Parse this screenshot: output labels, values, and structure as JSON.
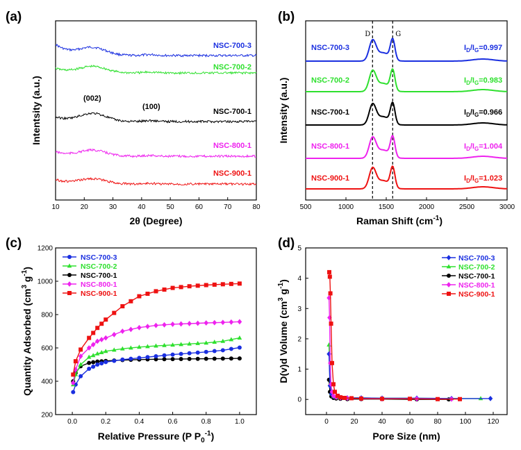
{
  "colors": {
    "NSC-700-3": "#1a2fe0",
    "NSC-700-2": "#2ee02e",
    "NSC-700-1": "#000000",
    "NSC-800-1": "#ee22ee",
    "NSC-900-1": "#ee1111"
  },
  "chart_data": [
    {
      "panel": "(a)",
      "type": "line",
      "title": "",
      "xlabel": "2θ (Degree)",
      "ylabel": "Intentsity (a.u.)",
      "xlim": [
        10,
        80
      ],
      "xticks": [
        "10",
        "20",
        "30",
        "40",
        "50",
        "60",
        "70",
        "80"
      ],
      "annotations": [
        "(002)",
        "(100)"
      ],
      "series": [
        {
          "name": "NSC-700-3",
          "offset": 4,
          "peak002": 0.9,
          "peak100": 0.35
        },
        {
          "name": "NSC-700-2",
          "offset": 3,
          "peak002": 0.75,
          "peak100": 0.3
        },
        {
          "name": "NSC-700-1",
          "offset": 2,
          "peak002": 0.95,
          "peak100": 0.35
        },
        {
          "name": "NSC-800-1",
          "offset": 1,
          "peak002": 0.7,
          "peak100": 0.3
        },
        {
          "name": "NSC-900-1",
          "offset": 0,
          "peak002": 0.6,
          "peak100": 0.25
        }
      ]
    },
    {
      "panel": "(b)",
      "type": "line",
      "title": "",
      "xlabel": "Raman Shift",
      "xunit": "cm",
      "xunit_sup": "-1",
      "ylabel": "Intensity (a.u.)",
      "xlim": [
        500,
        3000
      ],
      "xticks": [
        "500",
        "1000",
        "1500",
        "2000",
        "2500",
        "3000"
      ],
      "band_D": 1330,
      "band_G": 1580,
      "band_D_label": "D",
      "band_G_label": "G",
      "ratio_prefix": "I",
      "ratio_sub_D": "D",
      "ratio_sub_G": "G",
      "series": [
        {
          "name": "NSC-700-3",
          "ratio": "=0.997"
        },
        {
          "name": "NSC-700-2",
          "ratio": "=0.983"
        },
        {
          "name": "NSC-700-1",
          "ratio": "=0.966"
        },
        {
          "name": "NSC-800-1",
          "ratio": "=1.004"
        },
        {
          "name": "NSC-900-1",
          "ratio": "=1.023"
        }
      ]
    },
    {
      "panel": "(c)",
      "type": "line",
      "title": "",
      "xlabel": "Relative Pressure (P P",
      "xlabel_sub": "0",
      "xlabel_sup": "-1",
      "xlabel_end": ")",
      "ylabel": "Quantity Adsorbed (cm",
      "ylabel_sup1": "3",
      "ylabel_mid": " g",
      "ylabel_sup2": "-1",
      "ylabel_end": ")",
      "xlim": [
        -0.1,
        1.1
      ],
      "ylim": [
        200,
        1200
      ],
      "xticks": [
        "0.0",
        "0.2",
        "0.4",
        "0.6",
        "0.8",
        "1.0"
      ],
      "yticks": [
        "200",
        "400",
        "600",
        "800",
        "1000",
        "1200"
      ],
      "x": [
        0.005,
        0.02,
        0.05,
        0.1,
        0.15,
        0.2,
        0.3,
        0.4,
        0.5,
        0.6,
        0.7,
        0.8,
        0.9,
        1.0
      ],
      "series": [
        {
          "name": "NSC-700-3",
          "marker": "circle",
          "values": [
            335,
            380,
            430,
            475,
            500,
            515,
            530,
            540,
            550,
            560,
            568,
            576,
            586,
            602
          ]
        },
        {
          "name": "NSC-700-2",
          "marker": "triangle",
          "values": [
            380,
            440,
            500,
            545,
            565,
            580,
            595,
            605,
            612,
            618,
            624,
            630,
            640,
            660
          ]
        },
        {
          "name": "NSC-700-1",
          "marker": "circle",
          "values": [
            400,
            450,
            490,
            510,
            518,
            522,
            527,
            530,
            532,
            533,
            534,
            535,
            536,
            537
          ]
        },
        {
          "name": "NSC-800-1",
          "marker": "diamond",
          "values": [
            390,
            470,
            550,
            600,
            640,
            660,
            700,
            722,
            735,
            742,
            746,
            750,
            753,
            757
          ]
        },
        {
          "name": "NSC-900-1",
          "marker": "square",
          "values": [
            440,
            520,
            590,
            660,
            720,
            770,
            850,
            910,
            940,
            960,
            970,
            977,
            982,
            986
          ]
        }
      ]
    },
    {
      "panel": "(d)",
      "type": "line",
      "title": "",
      "xlabel": "Pore Size (nm)",
      "ylabel": "D(v)d Volume (cm",
      "ylabel_sup1": "3",
      "ylabel_mid": " g",
      "ylabel_sup2": "-1",
      "ylabel_end": ")",
      "xlim": [
        -15,
        130
      ],
      "ylim": [
        -0.5,
        5
      ],
      "xticks": [
        "0",
        "20",
        "40",
        "60",
        "80",
        "100",
        "120"
      ],
      "yticks": [
        "0",
        "1",
        "2",
        "3",
        "4",
        "5"
      ],
      "series": [
        {
          "name": "NSC-700-3",
          "marker": "diamond",
          "x": [
            1.8,
            2.5,
            3.5,
            5,
            7,
            10,
            15,
            25,
            40,
            65,
            90,
            118
          ],
          "values": [
            1.5,
            0.45,
            0.18,
            0.1,
            0.08,
            0.06,
            0.05,
            0.05,
            0.04,
            0.04,
            0.03,
            0.03
          ]
        },
        {
          "name": "NSC-700-2",
          "marker": "triangle",
          "x": [
            1.8,
            2.5,
            3.5,
            5,
            7,
            10,
            15,
            25,
            40,
            65,
            90,
            111
          ],
          "values": [
            1.8,
            0.5,
            0.2,
            0.1,
            0.07,
            0.06,
            0.05,
            0.05,
            0.04,
            0.04,
            0.03,
            0.03
          ]
        },
        {
          "name": "NSC-700-1",
          "marker": "circle",
          "x": [
            1.8,
            2.5,
            3.5,
            5,
            7,
            10,
            15,
            25,
            40,
            65,
            88
          ],
          "values": [
            0.65,
            0.25,
            0.1,
            0.05,
            0.03,
            0.02,
            0.01,
            0.01,
            0.01,
            0.0,
            0.0
          ]
        },
        {
          "name": "NSC-800-1",
          "marker": "diamond",
          "x": [
            1.8,
            2.2,
            2.7,
            3.2,
            4,
            5,
            7,
            10,
            15,
            25,
            40,
            65,
            90
          ],
          "values": [
            3.35,
            2.7,
            1.2,
            0.5,
            0.25,
            0.12,
            0.07,
            0.05,
            0.04,
            0.03,
            0.02,
            0.02,
            0.01
          ]
        },
        {
          "name": "NSC-900-1",
          "marker": "square",
          "x": [
            2.0,
            2.4,
            2.8,
            3.3,
            4,
            5,
            6,
            8,
            10,
            13,
            18,
            25,
            40,
            60,
            80,
            96
          ],
          "values": [
            4.2,
            4.05,
            3.5,
            2.5,
            1.2,
            0.5,
            0.25,
            0.12,
            0.07,
            0.05,
            0.04,
            0.03,
            0.02,
            0.02,
            0.01,
            0.01
          ]
        }
      ]
    }
  ]
}
